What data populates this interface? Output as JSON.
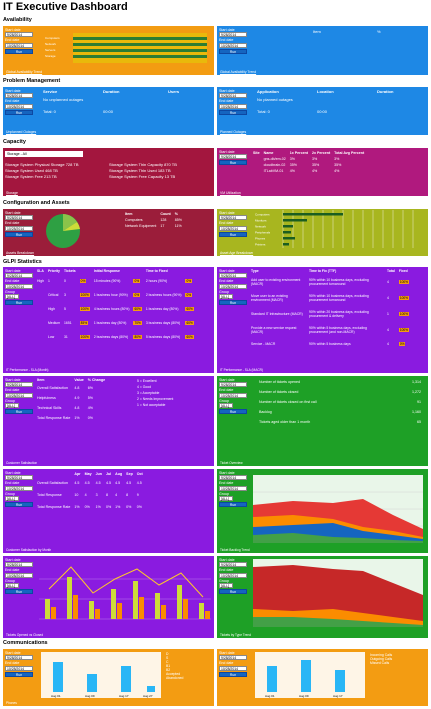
{
  "title": "IT Executive Dashboard",
  "sections": {
    "availability": "Availability",
    "problem": "Problem Management",
    "capacity": "Capacity",
    "config": "Configuration and Assets",
    "glpi": "GLPI Statistics",
    "comm": "Communications"
  },
  "controls": {
    "start_date": "Start date",
    "end_date": "End date",
    "start_value": "9/28/2014",
    "end_value": "10/28/2014",
    "group": "Group",
    "group_value": "[ALL]",
    "run": "Run"
  },
  "availability": {
    "left_link": "Global Availability Trend",
    "right_link": "Global Availability Trend",
    "right_headers": [
      "Item",
      "%",
      ""
    ],
    "chart_labels": [
      "Computers",
      "Network",
      "Servers",
      "Storage"
    ]
  },
  "problem": {
    "left_headers": [
      "Service",
      "Duration",
      "Users"
    ],
    "left_msg": "No unplanned outages",
    "left_total_label": "Total: 0",
    "left_total_value": "00:00",
    "right_headers": [
      "Application",
      "Location",
      "Duration"
    ],
    "right_msg": "No planned outages",
    "right_total_label": "Total: 0",
    "right_total_value": "00:00",
    "left_link": "Unplanned Outages",
    "right_link": "Planned Outages"
  },
  "capacity": {
    "select_value": "Storage - All",
    "lines_left": [
      "Storage System Physical Storage 728 TB",
      "Storage System Used 468 TB",
      "Storage System Free 213 TB"
    ],
    "lines_right": [
      "Storage System Thin Capacity 870 TB",
      "Storage System Thin Used 183 TB",
      "Storage System Free Capacity 13 TB"
    ],
    "left_link": "Storage",
    "right_headers": [
      "Site",
      "Name",
      "1x Percent",
      "2x Percent",
      "Total Avg Percent"
    ],
    "right_rows": [
      [
        "",
        "gns-db/em-02",
        "3%",
        "3%",
        "3%"
      ],
      [
        "",
        "cloudbrain-02",
        "35%",
        "35%",
        "35%"
      ],
      [
        "",
        "ITLabVM-01",
        "4%",
        "4%",
        "4%"
      ]
    ],
    "right_link": "VM Utilization"
  },
  "config": {
    "headers": [
      "Item",
      "Count",
      "%"
    ],
    "rows": [
      [
        "Computers",
        "128",
        "85%"
      ],
      [
        "Network Equipment",
        "17",
        "11%"
      ],
      [
        "Monitors",
        "7",
        "4%"
      ]
    ],
    "left_link": "Assets Breakdown",
    "right_link": "Asset Age Breakdown",
    "bar_labels": [
      "Computers",
      "Monitors",
      "Network",
      "Peripherals",
      "Phones",
      "Printers"
    ]
  },
  "glpi": {
    "t1_headers": [
      "SLA",
      "Priority",
      "Tickets",
      "",
      "Initial Response",
      "",
      "Time to Fixed",
      ""
    ],
    "t1_rows": [
      [
        "High",
        "1",
        "0",
        "0%",
        "15 minutes (90%)",
        "0%",
        "2 hours (90%)",
        "0%"
      ],
      [
        "",
        "Critical",
        "3",
        "100%",
        "1 business hour (90%)",
        "0%",
        "2 business hours (90%)",
        "0%"
      ],
      [
        "",
        "High",
        "5",
        "100%",
        "4 business hours (80%)",
        "60%",
        "1 business day (80%)",
        "60%"
      ],
      [
        "",
        "Medium",
        "1651",
        "85%",
        "1 business day (80%)",
        "70%",
        "3 business days (80%)",
        "60%"
      ],
      [
        "",
        "Low",
        "31",
        "100%",
        "2 business days (80%)",
        "80%",
        "5 business days (80%)",
        "60%"
      ]
    ],
    "t1_link": "IT Performance - SLA (Month)",
    "t2_headers": [
      "Type",
      "Time to Fix (TTF)",
      "Total",
      "Fixed"
    ],
    "t2_rows": [
      [
        "Add user to existing environment (MACR)",
        "90% within 10 business days, excluding procurement turnaround",
        "4",
        "100%"
      ],
      [
        "Move user to an existing environment (MACR)",
        "90% within 10 business days, excluding procurement turnaround",
        "4",
        "100%"
      ],
      [
        "Standard IT Infrastructure (MACR)",
        "90% within 20 business days, excluding procurement & delivery",
        "1",
        "100%"
      ],
      [
        "Provide a new service request (MACR)",
        "90% within 5 business days, excluding procurement (and non-MACR)",
        "4",
        "100%"
      ],
      [
        "Service - MACR",
        "90% within 5 business days",
        "4",
        "0%"
      ]
    ],
    "t2_link": "IT Performance - SLA (MACR)",
    "sat_headers": [
      "Item",
      "Value",
      "% Change",
      ""
    ],
    "sat_rows": [
      [
        "Overall Satisfaction",
        "4.8",
        "6%"
      ],
      [
        "Helpfulness",
        "4.9",
        "5%"
      ],
      [
        "Technical Skills",
        "4.8",
        "4%"
      ],
      [
        "Total Response Rate",
        "1%",
        "0%"
      ]
    ],
    "sat_legend": [
      "5 = Excellent",
      "4 = Good",
      "3 = Acceptable",
      "2 = Needs Improvement",
      "1 = Not acceptable"
    ],
    "sat_link": "Customer Satisfaction",
    "tix_rows": [
      [
        "Number of tickets opened",
        "1,314"
      ],
      [
        "Number of tickets closed",
        "1,272"
      ],
      [
        "Number of tickets closed on first call",
        "91"
      ],
      [
        "Backlog",
        "1,160"
      ],
      [
        "Tickets aged older than 1 month",
        "65"
      ]
    ],
    "tix_link": "Ticket Overview",
    "monthly_headers": [
      "",
      "Apr",
      "May",
      "Jun",
      "Jul",
      "Aug",
      "Sep",
      "Oct"
    ],
    "monthly_rows": [
      [
        "Overall Satisfaction",
        "4.5",
        "4.5",
        "4.5",
        "4.5",
        "4.5",
        "4.5",
        "4.5"
      ],
      [
        "Total Response",
        "10",
        "4",
        "3",
        "8",
        "4",
        "8",
        "9"
      ],
      [
        "Total Response Rate",
        "1%",
        "0%",
        "1%",
        "0%",
        "1%",
        "0%",
        "0%"
      ]
    ],
    "monthly_link": "Customer Satisfaction by Month",
    "area1_link": "Ticket Backlog Trend",
    "combo_link": "Tickets Opened vs Closed",
    "area2_link": "Tickets by Type Trend"
  },
  "comm": {
    "left_link": "Phones",
    "left_legend": [
      "D",
      "S",
      "C",
      "B1",
      "B2",
      "Accepted",
      "Abandoned"
    ],
    "left_x": [
      "Aug 01",
      "Aug 09",
      "Aug 17",
      "Aug 27"
    ],
    "right_legend": [
      "Incoming Calls",
      "Outgoing Calls",
      "Missed Calls"
    ],
    "right_x": [
      "Aug 01",
      "Aug 09",
      "Aug 17"
    ]
  },
  "colors": {
    "orange": "#f39c12",
    "blue": "#1e88e5",
    "purple": "#8a1be0",
    "green": "#1ea026"
  }
}
